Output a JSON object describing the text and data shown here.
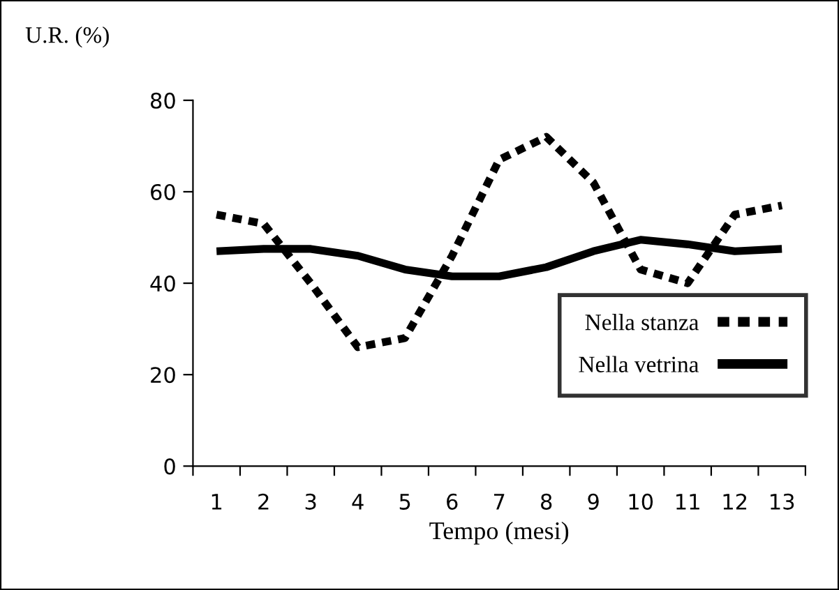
{
  "chart_data": {
    "type": "line",
    "ylabel": "U.R. (%)",
    "xlabel": "Tempo (mesi)",
    "categories": [
      "1",
      "2",
      "3",
      "4",
      "5",
      "6",
      "7",
      "8",
      "9",
      "10",
      "11",
      "12",
      "13"
    ],
    "series": [
      {
        "name": "Nella stanza",
        "color": "#000000",
        "line_style": "dotted",
        "values": [
          55,
          53,
          40,
          26,
          28,
          46,
          67,
          72,
          62,
          43,
          40,
          55,
          57
        ]
      },
      {
        "name": "Nella vetrina",
        "color": "#000000",
        "line_style": "solid",
        "values": [
          47,
          47.5,
          47.5,
          46,
          43,
          41.5,
          41.5,
          43.5,
          47,
          49.5,
          48.5,
          47,
          47.5
        ]
      }
    ],
    "ylim": [
      0,
      80
    ],
    "yticks": [
      0,
      20,
      40,
      60,
      80
    ],
    "grid": false,
    "legend": "right",
    "marker": "none"
  }
}
